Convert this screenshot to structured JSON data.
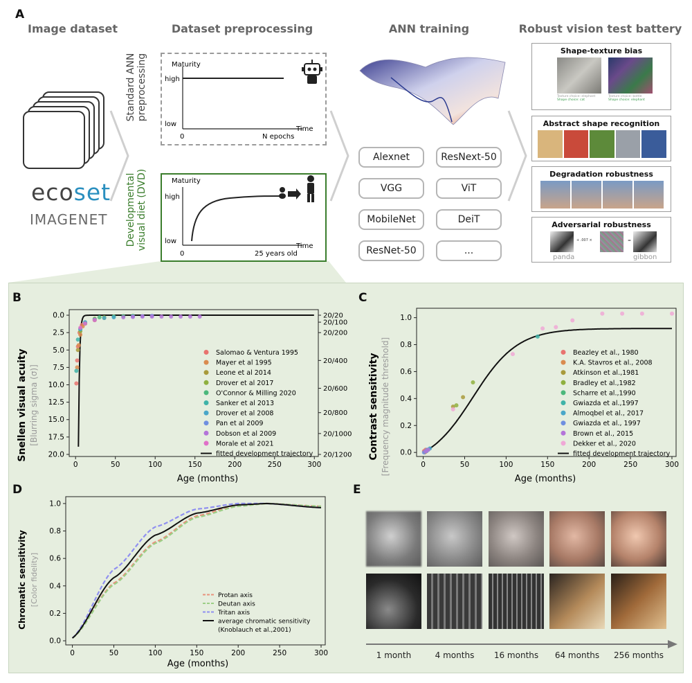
{
  "panel_a": {
    "letter": "A",
    "headers": {
      "dataset": "Image dataset",
      "preprocessing": "Dataset preprocessing",
      "training": "ANN training",
      "battery": "Robust vision test battery"
    },
    "logos": {
      "ecoset_a": "eco",
      "ecoset_b": "set",
      "imagenet": "IMAGENET"
    },
    "standard": {
      "side_label_1": "Standard ANN",
      "side_label_2": "preprocessing",
      "y_title": "Maturity",
      "high": "high",
      "low": "low",
      "x_title": "Time",
      "x0": "0",
      "x_end": "N epochs"
    },
    "dvd": {
      "side_label_1": "Developmental",
      "side_label_2": "visual diet (DVD)",
      "y_title": "Maturity",
      "high": "high",
      "low": "low",
      "x_title": "Time",
      "x0": "0",
      "x_end": "25 years old"
    },
    "models": [
      "Alexnet",
      "ResNext-50",
      "VGG",
      "ViT",
      "MobileNet",
      "DeiT",
      "ResNet-50",
      "..."
    ],
    "tests": {
      "shape_texture": {
        "title": "Shape-texture bias",
        "t1a": "Texture choice: elephant",
        "t1b": "Shape choice: cat",
        "t2a": "Texture choice: bottle",
        "t2b": "Shape choice: elephant"
      },
      "abstract": {
        "title": "Abstract shape recognition"
      },
      "degradation": {
        "title": "Degradation robustness"
      },
      "adversarial": {
        "title": "Adversarial robustness",
        "op": "+ .007 ×",
        "eq": "=",
        "left_label": "panda",
        "right_label": "gibbon"
      }
    },
    "colors": {
      "accent_green": "#3a7d2c",
      "dashed_grey": "#9a9a9a"
    }
  },
  "panel_b": {
    "letter": "B",
    "ylabel": "Snellen visual acuity",
    "ylabel2": "[Blurring sigma (σ)]",
    "xlabel": "Age (months)",
    "y_ticks": [
      "0.0",
      "2.5",
      "5.0",
      "7.5",
      "10.0",
      "12.5",
      "15.0",
      "17.5",
      "20.0"
    ],
    "x_ticks": [
      "0",
      "50",
      "100",
      "150",
      "200",
      "250",
      "300"
    ],
    "right_ticks": [
      "20/20",
      "20/100",
      "20/200",
      "20/400",
      "20/600",
      "20/800",
      "20/1000",
      "20/1200"
    ],
    "legend": [
      "Salomao & Ventura 1995",
      "Mayer et al 1995",
      "Leone et al 2014",
      "Drover et al 2017",
      "O'Connor & Milling 2020",
      "Sanker et al 2013",
      "Drover et al 2008",
      "Pan et al 2009",
      "Dobson et al 2009",
      "Morale et al 2021",
      "fitted development trajectory"
    ]
  },
  "panel_c": {
    "letter": "C",
    "ylabel": "Contrast sensitivity",
    "ylabel2": "[Frequency magnitude threshold]",
    "xlabel": "Age (months)",
    "y_ticks": [
      "0.0",
      "0.2",
      "0.4",
      "0.6",
      "0.8",
      "1.0"
    ],
    "x_ticks": [
      "0",
      "50",
      "100",
      "150",
      "200",
      "250",
      "300"
    ],
    "legend": [
      "Beazley et al., 1980",
      "K.A. Stavros et al., 2008",
      "Atkinson et al.,1981",
      "Bradley et al.,1982",
      "Scharre et al.,1990",
      "Gwiazda et al.,1997",
      "Almoqbel et al., 2017",
      "Gwiazda et al., 1997",
      "Brown et al., 2015",
      "Dekker et al., 2020",
      "fitted development trajectory"
    ]
  },
  "panel_d": {
    "letter": "D",
    "ylabel": "Chromatic sensitivity",
    "ylabel2": "[Color fidelity]",
    "xlabel": "Age (months)",
    "y_ticks": [
      "0.0",
      "0.2",
      "0.4",
      "0.6",
      "0.8",
      "1.0"
    ],
    "x_ticks": [
      "0",
      "50",
      "100",
      "150",
      "200",
      "250",
      "300"
    ],
    "legend": [
      "Protan axis",
      "Deutan axis",
      "Tritan axis",
      "average chromatic sensitivity",
      "(Knoblauch et al.,2001)"
    ]
  },
  "panel_e": {
    "letter": "E",
    "ages": [
      "1 month",
      "4 months",
      "16 months",
      "64 months",
      "256 months"
    ]
  },
  "chart_data": [
    {
      "type": "scatter",
      "panel": "B",
      "xlabel": "Age (months)",
      "ylabel": "Snellen visual acuity",
      "xlim": [
        -8,
        305
      ],
      "ylim": [
        20.3,
        -0.8
      ],
      "inverted_y": true,
      "series": [
        {
          "name": "Salomao & Ventura 1995",
          "color": "#e8736f",
          "x": [
            1,
            2,
            3,
            5,
            8
          ],
          "y": [
            9.8,
            6.5,
            4.5,
            2.5,
            1.4
          ]
        },
        {
          "name": "Mayer et al 1995",
          "color": "#d98b4f",
          "x": [
            2,
            4,
            6,
            9,
            12
          ],
          "y": [
            7.5,
            4.3,
            2.8,
            1.6,
            1.1
          ]
        },
        {
          "name": "Leone et al 2014",
          "color": "#a89a3c",
          "x": [
            3,
            12,
            24,
            36
          ],
          "y": [
            5.0,
            1.2,
            0.7,
            0.4
          ]
        },
        {
          "name": "Drover et al 2017",
          "color": "#8fb03f",
          "x": [
            6,
            12,
            24,
            36,
            48
          ],
          "y": [
            2.3,
            1.2,
            0.5,
            0.3,
            0.2
          ]
        },
        {
          "name": "O'Connor & Milling 2020",
          "color": "#4cb87c",
          "x": [
            30,
            48,
            60,
            72
          ],
          "y": [
            0.3,
            0.2,
            0.15,
            0.1
          ]
        },
        {
          "name": "Sanker et al 2013",
          "color": "#3fb3a8",
          "x": [
            1,
            3,
            6,
            12
          ],
          "y": [
            8.0,
            3.5,
            2.0,
            1.1
          ]
        },
        {
          "name": "Drover et al 2008",
          "color": "#4aa7c9",
          "x": [
            6,
            12,
            24,
            36,
            48
          ],
          "y": [
            2.0,
            1.0,
            0.6,
            0.4,
            0.3
          ]
        },
        {
          "name": "Pan et al 2009",
          "color": "#6f8fe0",
          "x": [
            72,
            84,
            96
          ],
          "y": [
            0.2,
            0.15,
            0.1
          ]
        },
        {
          "name": "Dobson et al 2009",
          "color": "#b474d9",
          "x": [
            60,
            72,
            84,
            96,
            108,
            120,
            132,
            144,
            156
          ],
          "y": [
            0.3,
            0.25,
            0.2,
            0.2,
            0.2,
            0.2,
            0.2,
            0.2,
            0.2
          ]
        },
        {
          "name": "Morale et al 2021",
          "color": "#e070c8",
          "x": [
            6,
            12,
            24
          ],
          "y": [
            1.8,
            1.2,
            0.7
          ]
        }
      ],
      "fit": {
        "name": "fitted development trajectory",
        "color": "#111111"
      }
    },
    {
      "type": "scatter",
      "panel": "C",
      "xlabel": "Age (months)",
      "ylabel": "Contrast sensitivity",
      "xlim": [
        -8,
        305
      ],
      "ylim": [
        -0.03,
        1.07
      ],
      "series": [
        {
          "name": "Beazley et al., 1980",
          "color": "#e8736f",
          "x": [
            1,
            2,
            3
          ],
          "y": [
            0.01,
            0.01,
            0.02
          ]
        },
        {
          "name": "K.A. Stavros et al., 2008",
          "color": "#d98b4f",
          "x": [
            2,
            4
          ],
          "y": [
            0.0,
            0.01
          ]
        },
        {
          "name": "Atkinson et al.,1981",
          "color": "#a89a3c",
          "x": [
            36,
            48
          ],
          "y": [
            0.34,
            0.41
          ]
        },
        {
          "name": "Bradley et al.,1982",
          "color": "#8fb03f",
          "x": [
            40,
            60
          ],
          "y": [
            0.35,
            0.52
          ]
        },
        {
          "name": "Scharre et al.,1990",
          "color": "#4cb87c",
          "x": [
            3,
            6
          ],
          "y": [
            0.01,
            0.02
          ]
        },
        {
          "name": "Gwiazda et al.,1997",
          "color": "#3fb3a8",
          "x": [
            138
          ],
          "y": [
            0.86
          ]
        },
        {
          "name": "Almoqbel et al., 2017",
          "color": "#4aa7c9",
          "x": [
            5,
            8
          ],
          "y": [
            0.02,
            0.03
          ]
        },
        {
          "name": "Gwiazda et al., 1997",
          "color": "#6f8fe0",
          "x": [
            1,
            4
          ],
          "y": [
            0.0,
            0.01
          ]
        },
        {
          "name": "Brown et al., 2015",
          "color": "#b474d9",
          "x": [
            3,
            6
          ],
          "y": [
            0.01,
            0.02
          ]
        },
        {
          "name": "Dekker et al., 2020",
          "color": "#f0a8d6",
          "x": [
            36,
            108,
            144,
            160,
            180,
            216,
            240,
            264,
            300
          ],
          "y": [
            0.32,
            0.73,
            0.92,
            0.93,
            0.98,
            1.03,
            1.03,
            1.03,
            1.03
          ]
        }
      ],
      "fit": {
        "name": "fitted development trajectory",
        "color": "#111111"
      }
    },
    {
      "type": "line",
      "panel": "D",
      "xlabel": "Age (months)",
      "ylabel": "Chromatic sensitivity",
      "xlim": [
        -8,
        305
      ],
      "ylim": [
        -0.03,
        1.05
      ],
      "series": [
        {
          "name": "Protan axis",
          "color": "#e8917c",
          "x": [
            0,
            50,
            100,
            150,
            200,
            235,
            300
          ],
          "y": [
            0.02,
            0.42,
            0.72,
            0.91,
            0.99,
            1.0,
            0.98
          ]
        },
        {
          "name": "Deutan axis",
          "color": "#9ccf86",
          "x": [
            0,
            50,
            100,
            150,
            200,
            235,
            300
          ],
          "y": [
            0.02,
            0.41,
            0.71,
            0.9,
            0.98,
            1.0,
            0.98
          ]
        },
        {
          "name": "Tritan axis",
          "color": "#8f8ff0",
          "x": [
            0,
            50,
            100,
            150,
            200,
            235,
            300
          ],
          "y": [
            0.02,
            0.52,
            0.83,
            0.96,
            1.0,
            1.0,
            0.97
          ]
        },
        {
          "name": "average chromatic sensitivity",
          "color": "#111111",
          "x": [
            0,
            50,
            100,
            150,
            200,
            235,
            300
          ],
          "y": [
            0.02,
            0.46,
            0.77,
            0.93,
            0.99,
            1.0,
            0.97
          ]
        }
      ]
    }
  ]
}
